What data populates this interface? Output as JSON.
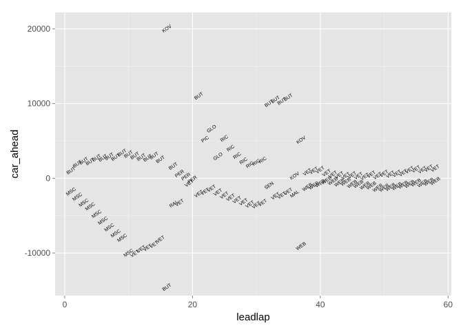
{
  "chart_data": {
    "type": "scatter",
    "title": "",
    "xlabel": "leadlap",
    "ylabel": "car_ahead",
    "xlim": [
      -1.5,
      60.5
    ],
    "ylim": [
      -15700,
      22200
    ],
    "x_ticks": [
      0,
      20,
      40,
      60
    ],
    "y_ticks": [
      -10000,
      0,
      10000,
      20000
    ],
    "x_tick_labels": [
      "0",
      "20",
      "40",
      "60"
    ],
    "y_tick_labels": [
      "-10000",
      "0",
      "10000",
      "20000"
    ],
    "grid": true,
    "panel_color": "#e5e5e5",
    "grid_color": "#ffffff",
    "label_rotation_deg": -35,
    "points": [
      {
        "x": 1,
        "y": 1000,
        "label": "BUT"
      },
      {
        "x": 2,
        "y": 1900,
        "label": "BUT"
      },
      {
        "x": 3,
        "y": 2300,
        "label": "BUT"
      },
      {
        "x": 4,
        "y": 2200,
        "label": "BUT"
      },
      {
        "x": 5,
        "y": 2700,
        "label": "BUT"
      },
      {
        "x": 6,
        "y": 2700,
        "label": "BUT"
      },
      {
        "x": 7,
        "y": 2900,
        "label": "BUT"
      },
      {
        "x": 8,
        "y": 2800,
        "label": "BUT"
      },
      {
        "x": 9,
        "y": 3400,
        "label": "BUT"
      },
      {
        "x": 10,
        "y": 3200,
        "label": "BUT"
      },
      {
        "x": 11,
        "y": 3000,
        "label": "BUT"
      },
      {
        "x": 12,
        "y": 2800,
        "label": "BUT"
      },
      {
        "x": 13,
        "y": 2700,
        "label": "BUT"
      },
      {
        "x": 14,
        "y": 3000,
        "label": "BUT"
      },
      {
        "x": 15,
        "y": 2500,
        "label": "BUT"
      },
      {
        "x": 17,
        "y": 1600,
        "label": "BUT"
      },
      {
        "x": 16,
        "y": -14600,
        "label": "BUT"
      },
      {
        "x": 16,
        "y": 20000,
        "label": "KOV"
      },
      {
        "x": 21,
        "y": 11000,
        "label": "BUT"
      },
      {
        "x": 1,
        "y": -1800,
        "label": "MSC"
      },
      {
        "x": 2,
        "y": -2500,
        "label": "MSC"
      },
      {
        "x": 3,
        "y": -3300,
        "label": "MSC"
      },
      {
        "x": 4,
        "y": -3800,
        "label": "MSC"
      },
      {
        "x": 5,
        "y": -4800,
        "label": "MSC"
      },
      {
        "x": 6,
        "y": -5700,
        "label": "MSC"
      },
      {
        "x": 7,
        "y": -6600,
        "label": "MSC"
      },
      {
        "x": 8,
        "y": -7400,
        "label": "MSC"
      },
      {
        "x": 9,
        "y": -8000,
        "label": "MSC"
      },
      {
        "x": 10,
        "y": -10000,
        "label": "MSC"
      },
      {
        "x": 11,
        "y": -10100,
        "label": "VET"
      },
      {
        "x": 12,
        "y": -9500,
        "label": "VET"
      },
      {
        "x": 13,
        "y": -9300,
        "label": "VET"
      },
      {
        "x": 14,
        "y": -8900,
        "label": "VET"
      },
      {
        "x": 15,
        "y": -8200,
        "label": "VET"
      },
      {
        "x": 17,
        "y": -3500,
        "label": "RAI"
      },
      {
        "x": 18,
        "y": -3300,
        "label": "VET"
      },
      {
        "x": 18,
        "y": 600,
        "label": "PER"
      },
      {
        "x": 19,
        "y": 200,
        "label": "PER"
      },
      {
        "x": 20,
        "y": -200,
        "label": "PER"
      },
      {
        "x": 19.5,
        "y": -700,
        "label": "VET"
      },
      {
        "x": 21,
        "y": -2100,
        "label": "VET"
      },
      {
        "x": 22,
        "y": -1800,
        "label": "VET"
      },
      {
        "x": 23,
        "y": -1400,
        "label": "VET"
      },
      {
        "x": 24,
        "y": -1900,
        "label": "VET"
      },
      {
        "x": 25,
        "y": -2300,
        "label": "VET"
      },
      {
        "x": 26,
        "y": -2600,
        "label": "VET"
      },
      {
        "x": 27,
        "y": -2900,
        "label": "VET"
      },
      {
        "x": 28,
        "y": -3200,
        "label": "VET"
      },
      {
        "x": 29,
        "y": -3500,
        "label": "VET"
      },
      {
        "x": 30,
        "y": -3600,
        "label": "VET"
      },
      {
        "x": 31,
        "y": -3300,
        "label": "VET"
      },
      {
        "x": 22,
        "y": 5200,
        "label": "PIC"
      },
      {
        "x": 23,
        "y": 6600,
        "label": "GLO"
      },
      {
        "x": 24,
        "y": 2900,
        "label": "GLO"
      },
      {
        "x": 25,
        "y": 5300,
        "label": "RIC"
      },
      {
        "x": 26,
        "y": 4000,
        "label": "RIC"
      },
      {
        "x": 27,
        "y": 3000,
        "label": "RIC"
      },
      {
        "x": 28,
        "y": 2300,
        "label": "RIC"
      },
      {
        "x": 29,
        "y": 1800,
        "label": "RIC"
      },
      {
        "x": 30,
        "y": 2100,
        "label": "RIC"
      },
      {
        "x": 31,
        "y": 2400,
        "label": "RIC"
      },
      {
        "x": 32,
        "y": -1000,
        "label": "SEN"
      },
      {
        "x": 33,
        "y": -2400,
        "label": "VET"
      },
      {
        "x": 34,
        "y": -2300,
        "label": "VET"
      },
      {
        "x": 35,
        "y": -1800,
        "label": "VET"
      },
      {
        "x": 36,
        "y": -2100,
        "label": "MAL"
      },
      {
        "x": 36,
        "y": 300,
        "label": "KOV"
      },
      {
        "x": 37,
        "y": 5100,
        "label": "KOV"
      },
      {
        "x": 37,
        "y": -9100,
        "label": "WEB"
      },
      {
        "x": 32,
        "y": 10000,
        "label": "BUT"
      },
      {
        "x": 33,
        "y": 10500,
        "label": "BUT"
      },
      {
        "x": 34,
        "y": 10300,
        "label": "BUT"
      },
      {
        "x": 35,
        "y": 10800,
        "label": "BUT"
      },
      {
        "x": 38,
        "y": 800,
        "label": "VET"
      },
      {
        "x": 39,
        "y": 1000,
        "label": "VET"
      },
      {
        "x": 40,
        "y": 1100,
        "label": "VET"
      },
      {
        "x": 41,
        "y": 700,
        "label": "VET"
      },
      {
        "x": 42,
        "y": 500,
        "label": "VET"
      },
      {
        "x": 43,
        "y": 400,
        "label": "VET"
      },
      {
        "x": 44,
        "y": 300,
        "label": "VET"
      },
      {
        "x": 45,
        "y": 400,
        "label": "VET"
      },
      {
        "x": 46,
        "y": 300,
        "label": "VET"
      },
      {
        "x": 47,
        "y": 200,
        "label": "VET"
      },
      {
        "x": 48,
        "y": 500,
        "label": "VET"
      },
      {
        "x": 49,
        "y": 300,
        "label": "VET"
      },
      {
        "x": 50,
        "y": 600,
        "label": "VET"
      },
      {
        "x": 51,
        "y": 500,
        "label": "VET"
      },
      {
        "x": 52,
        "y": 600,
        "label": "VET"
      },
      {
        "x": 53,
        "y": 700,
        "label": "VET"
      },
      {
        "x": 54,
        "y": 1100,
        "label": "VET"
      },
      {
        "x": 55,
        "y": 1200,
        "label": "VET"
      },
      {
        "x": 56,
        "y": 1100,
        "label": "VET"
      },
      {
        "x": 57,
        "y": 1300,
        "label": "VET"
      },
      {
        "x": 58,
        "y": 1300,
        "label": "VET"
      },
      {
        "x": 38,
        "y": -1200,
        "label": "WEB"
      },
      {
        "x": 39,
        "y": -1000,
        "label": "WEB"
      },
      {
        "x": 40,
        "y": -700,
        "label": "WEB"
      },
      {
        "x": 41,
        "y": -300,
        "label": "WEB"
      },
      {
        "x": 42,
        "y": -400,
        "label": "WEB"
      },
      {
        "x": 43,
        "y": -600,
        "label": "WEB"
      },
      {
        "x": 44,
        "y": -500,
        "label": "WEB"
      },
      {
        "x": 45,
        "y": -800,
        "label": "WEB"
      },
      {
        "x": 46,
        "y": -800,
        "label": "WEB"
      },
      {
        "x": 47,
        "y": -1000,
        "label": "WEB"
      },
      {
        "x": 48,
        "y": -1000,
        "label": "WEB"
      },
      {
        "x": 49,
        "y": -1300,
        "label": "WEB"
      },
      {
        "x": 50,
        "y": -1300,
        "label": "WEB"
      },
      {
        "x": 51,
        "y": -1200,
        "label": "WEB"
      },
      {
        "x": 52,
        "y": -1100,
        "label": "WEB"
      },
      {
        "x": 53,
        "y": -900,
        "label": "WEB"
      },
      {
        "x": 54,
        "y": -800,
        "label": "WEB"
      },
      {
        "x": 55,
        "y": -600,
        "label": "WEB"
      },
      {
        "x": 56,
        "y": -700,
        "label": "WEB"
      },
      {
        "x": 57,
        "y": -500,
        "label": "WEB"
      },
      {
        "x": 58,
        "y": -400,
        "label": "WEB"
      }
    ]
  }
}
